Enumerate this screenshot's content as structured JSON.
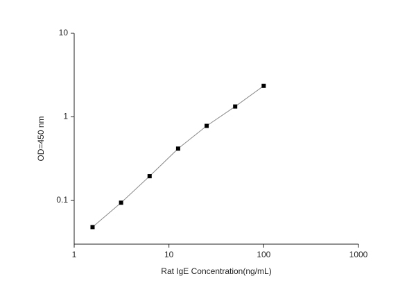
{
  "chart_data": {
    "type": "line",
    "x_label": "Rat IgE  Concentration(ng/mL)",
    "y_label": "OD=450 nm",
    "log_x": true,
    "log_y": true,
    "x": [
      1.5625,
      3.125,
      6.25,
      12.5,
      25,
      50,
      100
    ],
    "series": [
      {
        "color": "#000000",
        "line_color": "#888888",
        "values": [
          0.048,
          0.094,
          0.195,
          0.417,
          0.78,
          1.33,
          2.35
        ]
      }
    ],
    "xlim": [
      1,
      1000
    ],
    "xticks": [
      1,
      10,
      100,
      1000
    ],
    "ylim": [
      0.03,
      10
    ],
    "yticks": [
      0.1,
      1,
      10
    ]
  }
}
